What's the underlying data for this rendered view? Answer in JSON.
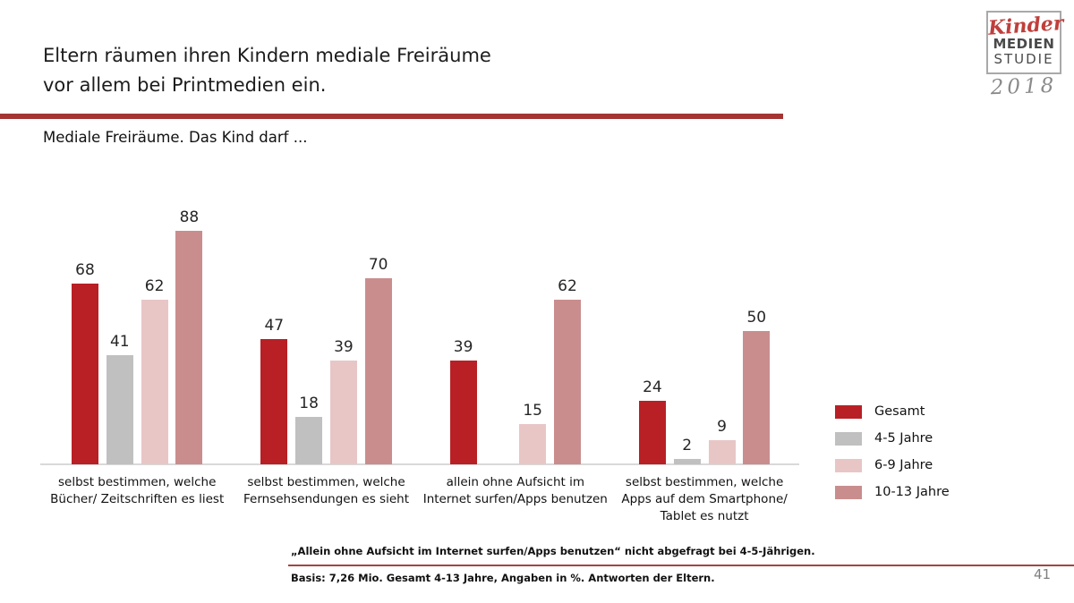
{
  "header": {
    "title": "Eltern räumen ihren Kindern mediale Freiräume\nvor allem bei Printmedien ein.",
    "subtitle": "Mediale Freiräume. Das Kind darf ...",
    "accent_color": "#a43534"
  },
  "logo": {
    "line1": "Kinder",
    "line2": "MEDIEN",
    "line3": "STUDIE",
    "year": "2018"
  },
  "chart_data": {
    "type": "bar",
    "title": "Mediale Freiräume. Das Kind darf ...",
    "unit": "%",
    "ylim": [
      0,
      100
    ],
    "grid": false,
    "legend_position": "right",
    "value_labels": true,
    "categories": [
      "selbst bestimmen, welche\nBücher/ Zeitschriften es liest",
      "selbst bestimmen, welche\nFernsehsendungen es sieht",
      "allein ohne Aufsicht im\nInternet surfen/Apps benutzen",
      "selbst bestimmen, welche\nApps auf dem Smartphone/\nTablet es nutzt"
    ],
    "series": [
      {
        "name": "Gesamt",
        "color": "#b82025",
        "values": [
          68,
          47,
          39,
          24
        ]
      },
      {
        "name": "4-5 Jahre",
        "color": "#c1c0c0",
        "values": [
          41,
          18,
          null,
          2
        ]
      },
      {
        "name": "6-9 Jahre",
        "color": "#e8c6c6",
        "values": [
          62,
          39,
          15,
          9
        ]
      },
      {
        "name": "10-13 Jahre",
        "color": "#ca8d8d",
        "values": [
          88,
          70,
          62,
          50
        ]
      }
    ],
    "axis_color": "#d9d9d9"
  },
  "footnotes": {
    "note": "„Allein ohne Aufsicht im Internet surfen/Apps benutzen“ nicht abgefragt bei 4-5-Jährigen.",
    "basis": "Basis: 7,26 Mio. Gesamt 4-13 Jahre, Angaben in %. Antworten der Eltern.",
    "divider_color": "#9e4742"
  },
  "page_number": "41"
}
